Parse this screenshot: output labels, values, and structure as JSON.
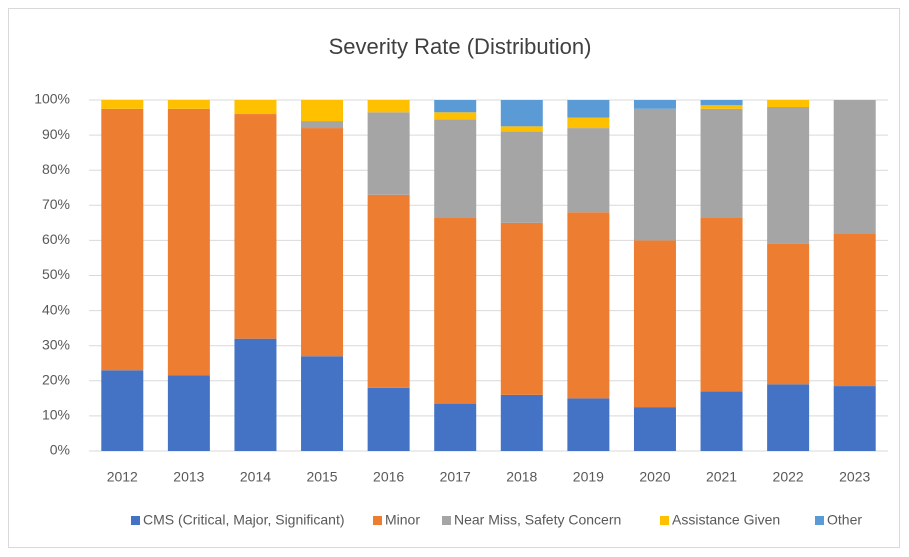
{
  "chart_data": {
    "type": "stacked_bar_100",
    "title": "Severity Rate (Distribution)",
    "categories": [
      "2012",
      "2013",
      "2014",
      "2015",
      "2016",
      "2017",
      "2018",
      "2019",
      "2020",
      "2021",
      "2022",
      "2023"
    ],
    "series": [
      {
        "name": "CMS (Critical, Major, Significant)",
        "color": "#4472c4",
        "values": [
          23,
          21.5,
          32,
          27,
          18,
          13.5,
          16,
          15,
          12.5,
          17,
          19,
          18.5
        ]
      },
      {
        "name": "Minor",
        "color": "#ed7d31",
        "values": [
          74.5,
          76,
          64,
          65,
          55,
          53,
          49,
          53,
          47.5,
          49.5,
          40,
          43.5
        ]
      },
      {
        "name": "Near Miss, Safety Concern",
        "color": "#a5a5a5",
        "values": [
          0,
          0,
          0,
          2,
          23.5,
          28,
          26,
          24,
          37.5,
          31,
          39,
          38
        ]
      },
      {
        "name": "Assistance Given",
        "color": "#ffc000",
        "values": [
          2.5,
          2.5,
          4,
          6,
          3.5,
          2,
          1.5,
          3,
          0,
          1,
          2,
          0
        ]
      },
      {
        "name": "Other",
        "color": "#5b9bd5",
        "values": [
          0,
          0,
          0,
          0,
          0,
          3.5,
          7.5,
          5,
          2.5,
          1.5,
          0,
          0
        ]
      }
    ],
    "ylim": [
      0,
      100
    ],
    "yticks": [
      {
        "value": 0,
        "label": "0%"
      },
      {
        "value": 10,
        "label": "10%"
      },
      {
        "value": 20,
        "label": "20%"
      },
      {
        "value": 30,
        "label": "30%"
      },
      {
        "value": 40,
        "label": "40%"
      },
      {
        "value": 50,
        "label": "50%"
      },
      {
        "value": 60,
        "label": "60%"
      },
      {
        "value": 70,
        "label": "70%"
      },
      {
        "value": 80,
        "label": "80%"
      },
      {
        "value": 90,
        "label": "90%"
      },
      {
        "value": 100,
        "label": "100%"
      }
    ],
    "grid": true,
    "legend": "bottom"
  }
}
